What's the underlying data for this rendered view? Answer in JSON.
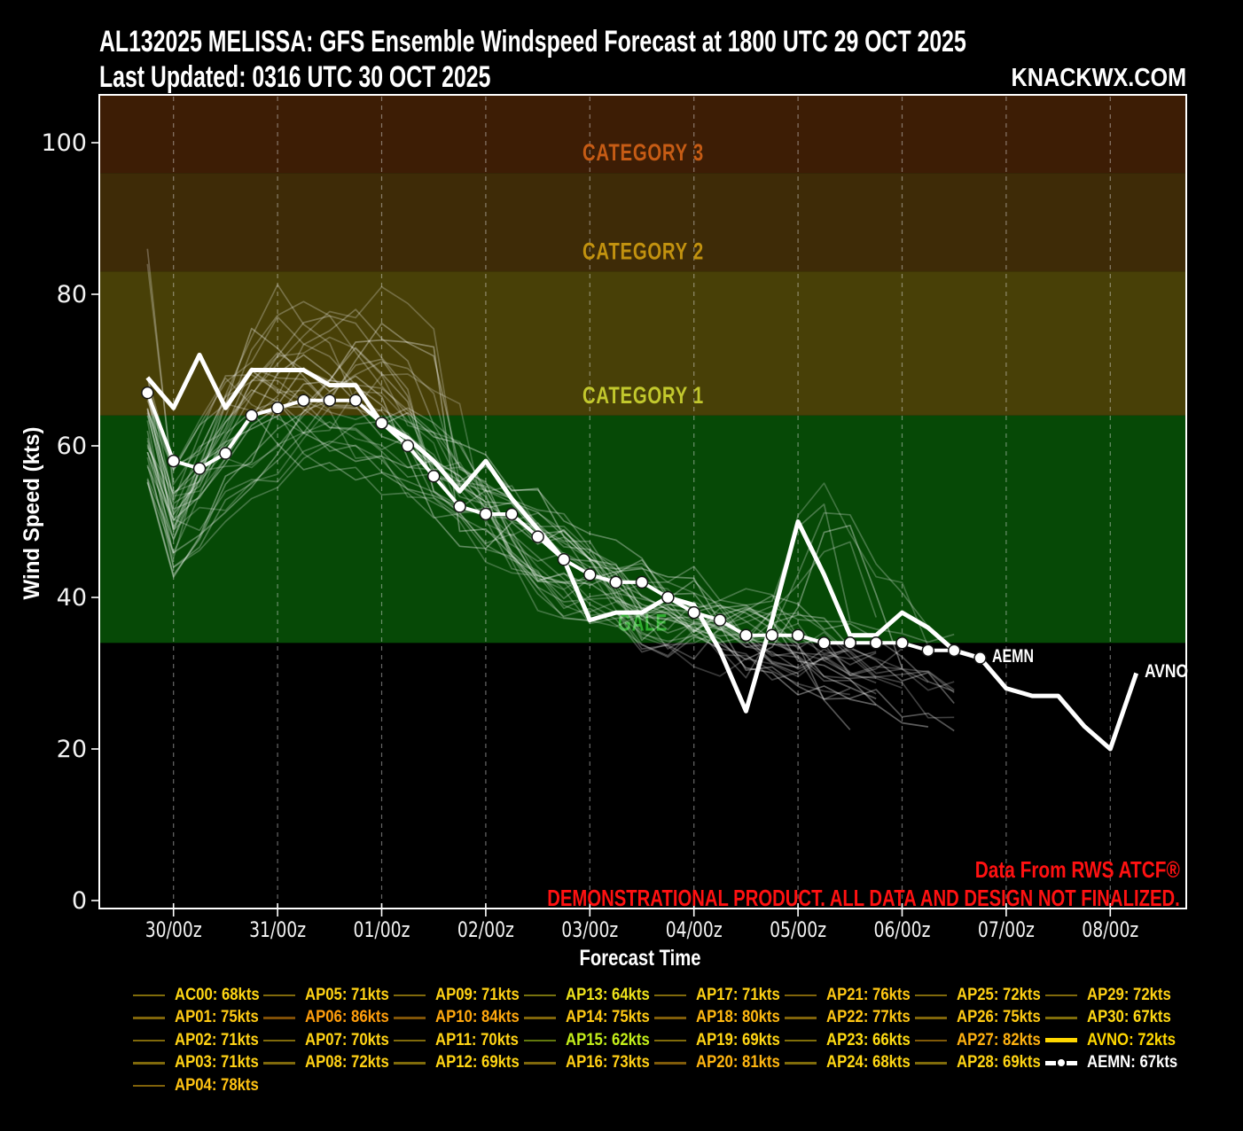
{
  "header": {
    "title": "AL132025 MELISSA: GFS Ensemble Windspeed Forecast at 1800 UTC 29 OCT 2025",
    "subtitle": "Last Updated: 0316 UTC 30 OCT 2025",
    "brand": "KNACKWX.COM"
  },
  "watermark": {
    "line1": "Data From RWS ATCF®",
    "line2": "DEMONSTRATIONAL PRODUCT. ALL DATA AND DESIGN NOT FINALIZED."
  },
  "chart_data": {
    "type": "line",
    "title": "AL132025 MELISSA: GFS Ensemble Windspeed Forecast at 1800 UTC 29 OCT 2025",
    "xlabel": "Forecast Time",
    "ylabel": "Wind Speed (kts)",
    "x_tick_labels": [
      "30/00z",
      "31/00z",
      "01/00z",
      "02/00z",
      "03/00z",
      "04/00z",
      "05/00z",
      "06/00z",
      "07/00z",
      "08/00z"
    ],
    "y_ticks": [
      0,
      20,
      40,
      60,
      80,
      100
    ],
    "ylim": [
      0,
      106
    ],
    "grid": "vertical-dashed",
    "legend_position": "bottom",
    "zones": [
      {
        "label": "CATEGORY 3",
        "from_kts": 96,
        "to_kts": 107,
        "color": "#3d1d05",
        "label_color": "#c65c15",
        "label_length": 137
      },
      {
        "label": "CATEGORY 2",
        "from_kts": 83,
        "to_kts": 96,
        "color": "#3e2b07",
        "label_color": "#c2920f",
        "label_length": 137
      },
      {
        "label": "CATEGORY 1",
        "from_kts": 64,
        "to_kts": 83,
        "color": "#484007",
        "label_color": "#c2c82d",
        "label_length": 137
      },
      {
        "label": "GALE",
        "from_kts": 34,
        "to_kts": 64,
        "color": "#064906",
        "label_color": "#2fae2f",
        "label_length": 56
      }
    ],
    "time_axis": {
      "start_day_offset": -0.25,
      "step_days": 0.25,
      "tick_day_offsets": [
        0,
        1,
        2,
        3,
        4,
        5,
        6,
        7,
        8,
        9
      ]
    },
    "series": [
      {
        "name": "AEMN",
        "label": "AEMN: 67kts",
        "annotation": "AEMN",
        "color": "#ffffff",
        "swatch": "dashdot",
        "peak_kts": 67,
        "values": [
          67,
          58,
          57,
          59,
          64,
          65,
          66,
          66,
          66,
          63,
          60,
          56,
          52,
          51,
          51,
          48,
          45,
          43,
          42,
          42,
          40,
          38,
          37,
          35,
          35,
          35,
          34,
          34,
          34,
          34,
          33,
          33,
          32
        ]
      },
      {
        "name": "AVNO",
        "label": "AVNO: 72kts",
        "annotation": "AVNO",
        "color": "#ffd700",
        "swatch": "solid",
        "peak_kts": 72,
        "values": [
          69,
          65,
          72,
          65,
          70,
          70,
          70,
          68,
          68,
          63,
          61,
          58,
          54,
          58,
          53,
          49,
          45,
          37,
          38,
          38,
          40,
          39,
          33,
          25,
          37,
          50,
          43,
          35,
          35,
          38,
          36,
          33,
          32,
          28,
          27,
          27,
          23,
          20,
          30
        ]
      }
    ],
    "members": [
      {
        "name": "AC00",
        "label": "AC00: 68kts",
        "peak_kts": 68,
        "color": "#ffd714"
      },
      {
        "name": "AP01",
        "label": "AP01: 75kts",
        "peak_kts": 75,
        "color": "#ffca14"
      },
      {
        "name": "AP02",
        "label": "AP02: 71kts",
        "peak_kts": 71,
        "color": "#ffd215"
      },
      {
        "name": "AP03",
        "label": "AP03: 71kts",
        "peak_kts": 71,
        "color": "#ffd215"
      },
      {
        "name": "AP04",
        "label": "AP04: 78kts",
        "peak_kts": 78,
        "color": "#ffc313"
      },
      {
        "name": "AP05",
        "label": "AP05: 71kts",
        "peak_kts": 71,
        "color": "#ffd215"
      },
      {
        "name": "AP06",
        "label": "AP06: 86kts",
        "peak_kts": 86,
        "color": "#ff9e0c"
      },
      {
        "name": "AP07",
        "label": "AP07: 70kts",
        "peak_kts": 70,
        "color": "#ffd315"
      },
      {
        "name": "AP08",
        "label": "AP08: 72kts",
        "peak_kts": 72,
        "color": "#ffd115"
      },
      {
        "name": "AP09",
        "label": "AP09: 71kts",
        "peak_kts": 71,
        "color": "#ffd215"
      },
      {
        "name": "AP10",
        "label": "AP10: 84kts",
        "peak_kts": 84,
        "color": "#ffa80e"
      },
      {
        "name": "AP11",
        "label": "AP11: 70kts",
        "peak_kts": 70,
        "color": "#ffd315"
      },
      {
        "name": "AP12",
        "label": "AP12: 69kts",
        "peak_kts": 69,
        "color": "#ffd514"
      },
      {
        "name": "AP13",
        "label": "AP13: 64kts",
        "peak_kts": 64,
        "color": "#eee31c"
      },
      {
        "name": "AP14",
        "label": "AP14: 75kts",
        "peak_kts": 75,
        "color": "#ffca14"
      },
      {
        "name": "AP15",
        "label": "AP15: 62kts",
        "peak_kts": 62,
        "color": "#c4ef1a"
      },
      {
        "name": "AP16",
        "label": "AP16: 73kts",
        "peak_kts": 73,
        "color": "#ffcf15"
      },
      {
        "name": "AP17",
        "label": "AP17: 71kts",
        "peak_kts": 71,
        "color": "#ffd215"
      },
      {
        "name": "AP18",
        "label": "AP18: 80kts",
        "peak_kts": 80,
        "color": "#ffb911"
      },
      {
        "name": "AP19",
        "label": "AP19: 69kts",
        "peak_kts": 69,
        "color": "#ffd514"
      },
      {
        "name": "AP20",
        "label": "AP20: 81kts",
        "peak_kts": 81,
        "color": "#ffb611"
      },
      {
        "name": "AP21",
        "label": "AP21: 76kts",
        "peak_kts": 76,
        "color": "#ffc814"
      },
      {
        "name": "AP22",
        "label": "AP22: 77kts",
        "peak_kts": 77,
        "color": "#ffc614"
      },
      {
        "name": "AP23",
        "label": "AP23: 66kts",
        "peak_kts": 66,
        "color": "#ffdc12"
      },
      {
        "name": "AP24",
        "label": "AP24: 68kts",
        "peak_kts": 68,
        "color": "#ffd714"
      },
      {
        "name": "AP25",
        "label": "AP25: 72kts",
        "peak_kts": 72,
        "color": "#ffd115"
      },
      {
        "name": "AP26",
        "label": "AP26: 75kts",
        "peak_kts": 75,
        "color": "#ffca14"
      },
      {
        "name": "AP27",
        "label": "AP27: 82kts",
        "peak_kts": 82,
        "color": "#ffb210"
      },
      {
        "name": "AP28",
        "label": "AP28: 69kts",
        "peak_kts": 69,
        "color": "#ffd514"
      },
      {
        "name": "AP29",
        "label": "AP29: 72kts",
        "peak_kts": 72,
        "color": "#ffd115"
      },
      {
        "name": "AP30",
        "label": "AP30: 67kts",
        "peak_kts": 67,
        "color": "#ffd914"
      }
    ]
  },
  "legend": {
    "columns": [
      [
        "AC00",
        "AP01",
        "AP02",
        "AP03",
        "AP04"
      ],
      [
        "AP05",
        "AP06",
        "AP07",
        "AP08"
      ],
      [
        "AP09",
        "AP10",
        "AP11",
        "AP12"
      ],
      [
        "AP13",
        "AP14",
        "AP15",
        "AP16"
      ],
      [
        "AP17",
        "AP18",
        "AP19",
        "AP20"
      ],
      [
        "AP21",
        "AP22",
        "AP23",
        "AP24"
      ],
      [
        "AP25",
        "AP26",
        "AP27",
        "AP28"
      ],
      [
        "AP29",
        "AP30",
        "AVNO",
        "AEMN"
      ]
    ]
  }
}
